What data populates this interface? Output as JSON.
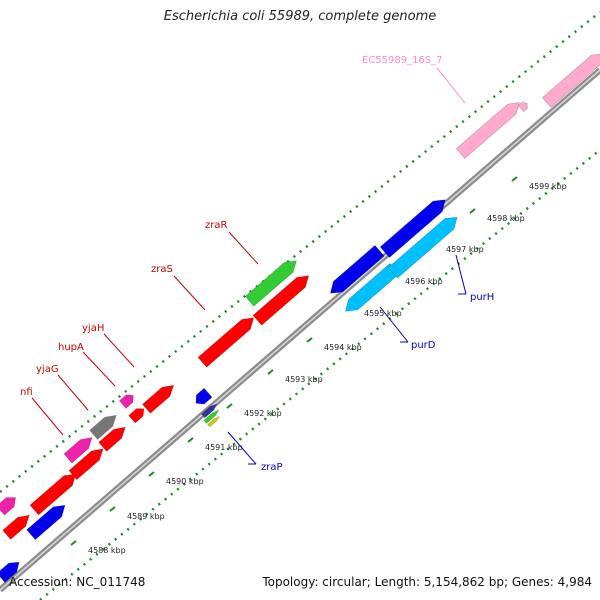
{
  "title": "Escherichia coli 55989, complete genome",
  "accession": "Accession: NC_011748",
  "topology": "Topology: circular;",
  "length": "Length: 5,154,862 bp;",
  "genes": "Genes: 4,984",
  "ticks": [
    {
      "label": "4588 kbp",
      "kbp": 4588
    },
    {
      "label": "4589 kbp",
      "kbp": 4589
    },
    {
      "label": "4590 kbp",
      "kbp": 4590
    },
    {
      "label": "4591 kbp",
      "kbp": 4591
    },
    {
      "label": "4592 kbp",
      "kbp": 4592
    },
    {
      "label": "4593 kbp",
      "kbp": 4593
    },
    {
      "label": "4594 kbp",
      "kbp": 4594
    },
    {
      "label": "4595 kbp",
      "kbp": 4595
    },
    {
      "label": "4596 kbp",
      "kbp": 4596
    },
    {
      "label": "4597 kbp",
      "kbp": 4597
    },
    {
      "label": "4598 kbp",
      "kbp": 4598
    },
    {
      "label": "4599 kbp",
      "kbp": 4599
    }
  ],
  "colors": {
    "backbone": "#8c8c8c",
    "tick_green": "#1f8a1f",
    "red": "#ff0000",
    "blue": "#0000ee",
    "cyan": "#00bfff",
    "green": "#33cc33",
    "magenta": "#ee22aa",
    "pink": "#ffaacc",
    "gray": "#777777",
    "label_red": "#cc0000",
    "label_blue": "#0000cc",
    "label_pink": "#ff88cc"
  },
  "features": [
    {
      "name": "nfi",
      "color": "red",
      "strand": "top"
    },
    {
      "name": "yjaG",
      "color": "red",
      "strand": "top"
    },
    {
      "name": "hupA",
      "color": "red",
      "strand": "top"
    },
    {
      "name": "yjaH",
      "color": "red",
      "strand": "top"
    },
    {
      "name": "zraS",
      "color": "red",
      "strand": "top"
    },
    {
      "name": "zraR",
      "color": "red",
      "strand": "top"
    },
    {
      "name": "zraP",
      "color": "blue",
      "strand": "bottom"
    },
    {
      "name": "purD",
      "color": "blue",
      "strand": "bottom"
    },
    {
      "name": "purH",
      "color": "blue",
      "strand": "bottom"
    },
    {
      "name": "EC55989_16S_7",
      "color": "pink",
      "strand": "top"
    }
  ]
}
